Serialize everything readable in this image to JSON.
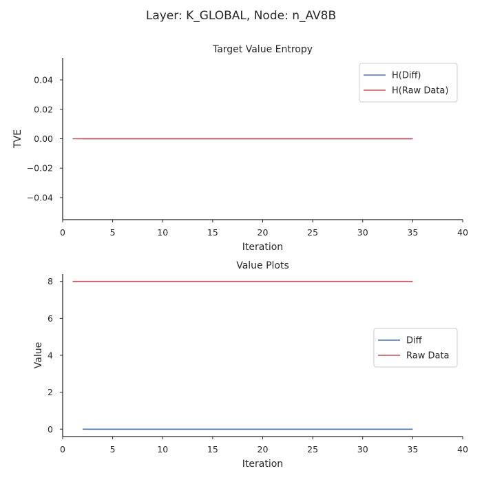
{
  "figure": {
    "suptitle": "Layer: K_GLOBAL, Node: n_AV8B"
  },
  "colors": {
    "diff": "#4c72b0",
    "raw": "#c44e52"
  },
  "chart_data": [
    {
      "type": "line",
      "title": "Target Value Entropy",
      "xlabel": "Iteration",
      "ylabel": "TVE",
      "xlim": [
        0,
        40
      ],
      "ylim": [
        -0.055,
        0.055
      ],
      "xticks": [
        0,
        5,
        10,
        15,
        20,
        25,
        30,
        35,
        40
      ],
      "xtick_labels": [
        "0",
        "5",
        "10",
        "15",
        "20",
        "25",
        "30",
        "35",
        "40"
      ],
      "yticks": [
        0.04,
        0.02,
        0.0,
        -0.02,
        -0.04
      ],
      "ytick_labels": [
        "0.04",
        "0.02",
        "0.00",
        "−0.02",
        "−0.04"
      ],
      "grid": false,
      "legend": "top-right",
      "series": [
        {
          "name": "H(Diff)",
          "color": "#4c72b0",
          "x": [
            2,
            35
          ],
          "y": [
            0,
            0
          ]
        },
        {
          "name": "H(Raw Data)",
          "color": "#c44e52",
          "x": [
            1,
            35
          ],
          "y": [
            0,
            0
          ]
        }
      ]
    },
    {
      "type": "line",
      "title": "Value Plots",
      "xlabel": "Iteration",
      "ylabel": "Value",
      "xlim": [
        0,
        40
      ],
      "ylim": [
        -0.4,
        8.4
      ],
      "xticks": [
        0,
        5,
        10,
        15,
        20,
        25,
        30,
        35,
        40
      ],
      "xtick_labels": [
        "0",
        "5",
        "10",
        "15",
        "20",
        "25",
        "30",
        "35",
        "40"
      ],
      "yticks": [
        0,
        2,
        4,
        6,
        8
      ],
      "ytick_labels": [
        "0",
        "2",
        "4",
        "6",
        "8"
      ],
      "grid": false,
      "legend": "center-right",
      "series": [
        {
          "name": "Diff",
          "color": "#4c72b0",
          "x": [
            2,
            35
          ],
          "y": [
            0,
            0
          ]
        },
        {
          "name": "Raw Data",
          "color": "#c44e52",
          "x": [
            1,
            35
          ],
          "y": [
            8,
            8
          ]
        }
      ]
    }
  ]
}
